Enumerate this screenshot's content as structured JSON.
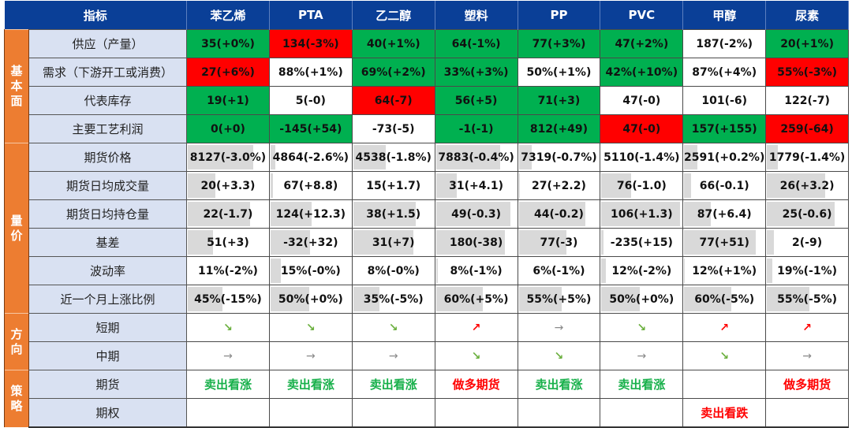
{
  "header": {
    "metric_label": "指标",
    "columns": [
      "苯乙烯",
      "PTA",
      "乙二醇",
      "塑料",
      "PP",
      "PVC",
      "甲醇",
      "尿素"
    ]
  },
  "colors": {
    "header_bg": "#0a3f97",
    "category_bg": "#ed7d31",
    "label_bg": "#d9e1f2",
    "positive_green": "#00b050",
    "negative_red": "#ff0000",
    "bar_gray": "#d9d9d9",
    "arrow_down": "#6aaf3d",
    "arrow_up": "#ff0000",
    "arrow_flat": "#8a8a8a"
  },
  "sections": {
    "fundamentals": {
      "category": "基本面",
      "rows": [
        {
          "label": "供应（产量）",
          "cells": [
            {
              "v": "35(+0%)",
              "c": "green"
            },
            {
              "v": "134(-3%)",
              "c": "red"
            },
            {
              "v": "40(+1%)",
              "c": "green"
            },
            {
              "v": "64(-1%)",
              "c": "green"
            },
            {
              "v": "77(+3%)",
              "c": "green"
            },
            {
              "v": "47(+2%)",
              "c": "green"
            },
            {
              "v": "187(-2%)",
              "c": "white"
            },
            {
              "v": "20(+1%)",
              "c": "green"
            }
          ]
        },
        {
          "label": "需求（下游开工或消费）",
          "cells": [
            {
              "v": "27(+6%)",
              "c": "red"
            },
            {
              "v": "88%(+1%)",
              "c": "white"
            },
            {
              "v": "69%(+2%)",
              "c": "green"
            },
            {
              "v": "33%(+3%)",
              "c": "green"
            },
            {
              "v": "50%(+1%)",
              "c": "white"
            },
            {
              "v": "42%(+10%)",
              "c": "green"
            },
            {
              "v": "87%(+4%)",
              "c": "white"
            },
            {
              "v": "55%(-3%)",
              "c": "red"
            }
          ]
        },
        {
          "label": "代表库存",
          "cells": [
            {
              "v": "19(+1)",
              "c": "green"
            },
            {
              "v": "5(-0)",
              "c": "white"
            },
            {
              "v": "64(-7)",
              "c": "red"
            },
            {
              "v": "56(+5)",
              "c": "green"
            },
            {
              "v": "71(+3)",
              "c": "green"
            },
            {
              "v": "47(-0)",
              "c": "white"
            },
            {
              "v": "101(-6)",
              "c": "white"
            },
            {
              "v": "122(-7)",
              "c": "white"
            }
          ]
        },
        {
          "label": "主要工艺利润",
          "cells": [
            {
              "v": "0(+0)",
              "c": "green"
            },
            {
              "v": "-145(+54)",
              "c": "green"
            },
            {
              "v": "-73(-5)",
              "c": "white"
            },
            {
              "v": "-1(-1)",
              "c": "green"
            },
            {
              "v": "812(+49)",
              "c": "green"
            },
            {
              "v": "47(-0)",
              "c": "red"
            },
            {
              "v": "157(+155)",
              "c": "green"
            },
            {
              "v": "259(-64)",
              "c": "red"
            }
          ]
        }
      ]
    },
    "volume_price": {
      "category": "量价",
      "rows": [
        {
          "label": "期货价格",
          "cells": [
            {
              "v": "8127(-3.0%)",
              "bar": 82
            },
            {
              "v": "4864(-2.6%)",
              "bar": 8
            },
            {
              "v": "4538(-1.8%)",
              "bar": 42
            },
            {
              "v": "7883(-0.4%)",
              "bar": 80
            },
            {
              "v": "7319(-0.7%)",
              "bar": 18
            },
            {
              "v": "5110(-1.4%)",
              "bar": 0
            },
            {
              "v": "2591(+0.2%)",
              "bar": 18
            },
            {
              "v": "1779(-1.4%)",
              "bar": 15
            }
          ]
        },
        {
          "label": "期货日均成交量",
          "cells": [
            {
              "v": "20(+3.3)",
              "bar": 36
            },
            {
              "v": "67(+8.8)",
              "bar": 5
            },
            {
              "v": "15(+1.7)",
              "bar": 2
            },
            {
              "v": "31(+4.1)",
              "bar": 27
            },
            {
              "v": "27(+2.2)",
              "bar": 3
            },
            {
              "v": "76(-1.0)",
              "bar": 38
            },
            {
              "v": "66(-0.1)",
              "bar": 10
            },
            {
              "v": "26(+3.2)",
              "bar": 73
            }
          ]
        },
        {
          "label": "期货日均持仓量",
          "cells": [
            {
              "v": "22(-1.7)",
              "bar": 78
            },
            {
              "v": "124(+12.3)",
              "bar": 52
            },
            {
              "v": "38(+1.5)",
              "bar": 78
            },
            {
              "v": "49(-0.3)",
              "bar": 93
            },
            {
              "v": "44(-0.2)",
              "bar": 83
            },
            {
              "v": "106(+1.3)",
              "bar": 98
            },
            {
              "v": "87(+6.4)",
              "bar": 34
            },
            {
              "v": "25(-0.6)",
              "bar": 85
            }
          ]
        },
        {
          "label": "基差",
          "cells": [
            {
              "v": "51(+3)",
              "bar": 33
            },
            {
              "v": "-32(+32)",
              "bar": 50
            },
            {
              "v": "31(+7)",
              "bar": 75
            },
            {
              "v": "180(-38)",
              "bar": 86
            },
            {
              "v": "77(-3)",
              "bar": 60
            },
            {
              "v": "-235(+15)",
              "bar": 4
            },
            {
              "v": "77(+51)",
              "bar": 89
            },
            {
              "v": "2(-9)",
              "bar": 10
            }
          ]
        },
        {
          "label": "波动率",
          "cells": [
            {
              "v": "11%(-2%)",
              "bar": 2
            },
            {
              "v": "15%(-0%)",
              "bar": 15
            },
            {
              "v": "8%(-0%)",
              "bar": 0
            },
            {
              "v": "8%(-1%)",
              "bar": 4
            },
            {
              "v": "6%(-1%)",
              "bar": 2
            },
            {
              "v": "12%(-2%)",
              "bar": 7
            },
            {
              "v": "12%(+1%)",
              "bar": 3
            },
            {
              "v": "19%(-1%)",
              "bar": 9
            }
          ]
        },
        {
          "label": "近一个月上涨比例",
          "cells": [
            {
              "v": "45%(-15%)",
              "bar": 44
            },
            {
              "v": "50%(+0%)",
              "bar": 49
            },
            {
              "v": "35%(-5%)",
              "bar": 34
            },
            {
              "v": "60%(+5%)",
              "bar": 59
            },
            {
              "v": "55%(+5%)",
              "bar": 54
            },
            {
              "v": "50%(+0%)",
              "bar": 49
            },
            {
              "v": "60%(-5%)",
              "bar": 59
            },
            {
              "v": "55%(-5%)",
              "bar": 54
            }
          ]
        }
      ]
    },
    "direction": {
      "category": "方向",
      "rows": [
        {
          "label": "短期",
          "cells": [
            {
              "v": "↘",
              "dir": "down"
            },
            {
              "v": "↘",
              "dir": "down"
            },
            {
              "v": "↘",
              "dir": "down"
            },
            {
              "v": "↗",
              "dir": "up"
            },
            {
              "v": "→",
              "dir": "flat"
            },
            {
              "v": "↘",
              "dir": "down"
            },
            {
              "v": "↗",
              "dir": "up"
            },
            {
              "v": "↗",
              "dir": "up"
            }
          ]
        },
        {
          "label": "中期",
          "cells": [
            {
              "v": "→",
              "dir": "flat"
            },
            {
              "v": "→",
              "dir": "flat"
            },
            {
              "v": "→",
              "dir": "flat"
            },
            {
              "v": "↘",
              "dir": "down"
            },
            {
              "v": "↘",
              "dir": "down"
            },
            {
              "v": "→",
              "dir": "flat"
            },
            {
              "v": "↘",
              "dir": "down"
            },
            {
              "v": "→",
              "dir": "flat"
            }
          ]
        }
      ]
    },
    "strategy": {
      "category": "策略",
      "rows": [
        {
          "label": "期货",
          "cells": [
            {
              "v": "卖出看涨",
              "c": "green"
            },
            {
              "v": "卖出看涨",
              "c": "green"
            },
            {
              "v": "卖出看涨",
              "c": "green"
            },
            {
              "v": "做多期货",
              "c": "red"
            },
            {
              "v": "卖出看涨",
              "c": "green"
            },
            {
              "v": "卖出看涨",
              "c": "green"
            },
            {
              "v": "",
              "c": ""
            },
            {
              "v": "做多期货",
              "c": "red"
            }
          ]
        },
        {
          "label": "期权",
          "cells": [
            {
              "v": "",
              "c": ""
            },
            {
              "v": "",
              "c": ""
            },
            {
              "v": "",
              "c": ""
            },
            {
              "v": "",
              "c": ""
            },
            {
              "v": "",
              "c": ""
            },
            {
              "v": "",
              "c": ""
            },
            {
              "v": "卖出看跌",
              "c": "red"
            },
            {
              "v": "",
              "c": ""
            }
          ]
        }
      ]
    }
  }
}
